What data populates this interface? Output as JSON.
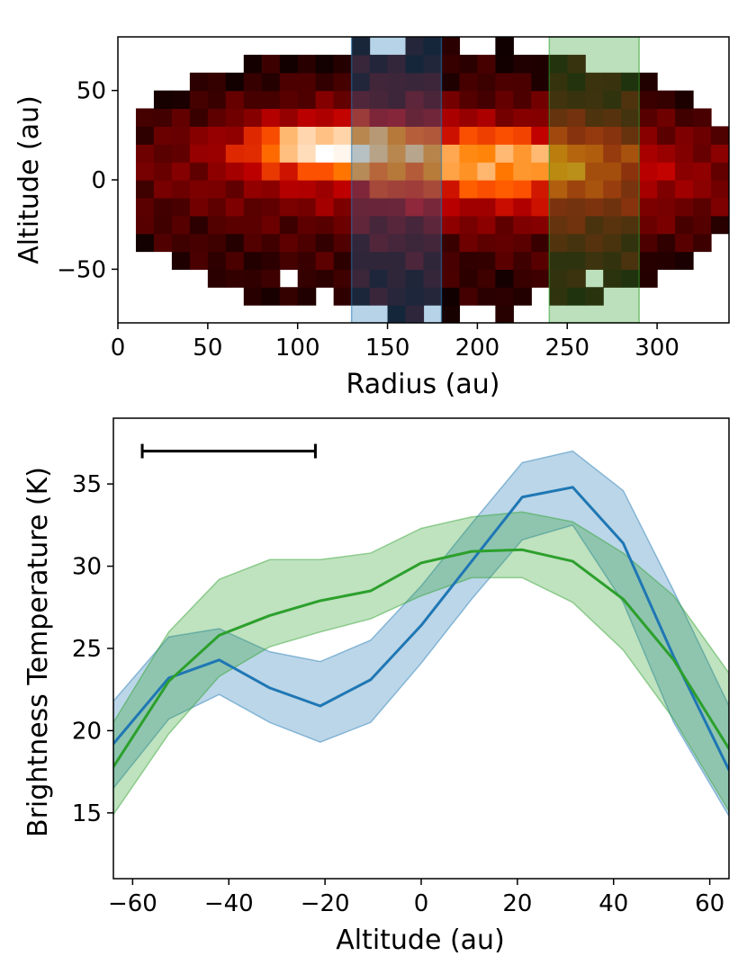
{
  "chart_data": [
    {
      "type": "heatmap",
      "xlabel": "Radius (au)",
      "ylabel": "Altitude (au)",
      "xlim": [
        0,
        340
      ],
      "ylim": [
        -80,
        80
      ],
      "xticks": [
        0,
        50,
        100,
        150,
        200,
        250,
        300
      ],
      "xtick_labels": [
        "0",
        "50",
        "100",
        "150",
        "200",
        "250",
        "300"
      ],
      "yticks": [
        50,
        0,
        -50
      ],
      "ytick_labels": [
        "50",
        "0",
        "−50"
      ],
      "colormap": "gist_heat",
      "highlight_bands": [
        {
          "name": "blue-band",
          "x_range": [
            130,
            180
          ],
          "color": "#1f77b4"
        },
        {
          "name": "green-band",
          "x_range": [
            240,
            290
          ],
          "color": "#2ca02c"
        }
      ]
    },
    {
      "type": "line",
      "xlabel": "Altitude (au)",
      "ylabel": "Brightness Temperature (K)",
      "xlim": [
        -64,
        64
      ],
      "ylim": [
        11,
        39
      ],
      "xticks": [
        -60,
        -40,
        -20,
        0,
        20,
        40,
        60
      ],
      "xtick_labels": [
        "−60",
        "−40",
        "−20",
        "0",
        "20",
        "40",
        "60"
      ],
      "yticks": [
        15,
        20,
        25,
        30,
        35
      ],
      "ytick_labels": [
        "15",
        "20",
        "25",
        "30",
        "35"
      ],
      "scale_bar": {
        "x_range": [
          -58,
          -22
        ],
        "y": 37
      },
      "series": [
        {
          "name": "blue",
          "color": "#1f77b4",
          "x": [
            -64,
            -52.5,
            -42,
            -31.5,
            -21,
            -10.5,
            0,
            10.5,
            21,
            31.5,
            42,
            52.5,
            64
          ],
          "values": [
            19.2,
            23.2,
            24.3,
            22.6,
            21.5,
            23.1,
            26.4,
            30.3,
            34.2,
            34.8,
            31.4,
            24.5,
            17.6
          ],
          "lower": [
            16.5,
            20.7,
            22.2,
            20.5,
            19.3,
            20.5,
            24.1,
            28.0,
            31.6,
            32.5,
            27.8,
            20.5,
            14.8
          ],
          "upper": [
            21.8,
            25.7,
            26.2,
            24.8,
            24.2,
            25.5,
            28.8,
            32.6,
            36.3,
            37.0,
            34.6,
            28.5,
            21.5
          ]
        },
        {
          "name": "green",
          "color": "#2ca02c",
          "x": [
            -64,
            -52.5,
            -42,
            -31.5,
            -21,
            -10.5,
            0,
            10.5,
            21,
            31.5,
            42,
            52.5,
            64
          ],
          "values": [
            17.8,
            23.0,
            25.8,
            27.0,
            27.9,
            28.5,
            30.2,
            30.9,
            31.0,
            30.3,
            28.0,
            24.3,
            18.9
          ],
          "lower": [
            14.9,
            19.8,
            23.3,
            25.1,
            26.0,
            26.8,
            28.2,
            29.3,
            29.3,
            27.8,
            24.9,
            20.7,
            15.1
          ],
          "upper": [
            20.5,
            26.0,
            29.2,
            30.4,
            30.4,
            30.8,
            32.3,
            33.0,
            33.3,
            32.7,
            30.8,
            28.2,
            23.5
          ]
        }
      ]
    }
  ]
}
